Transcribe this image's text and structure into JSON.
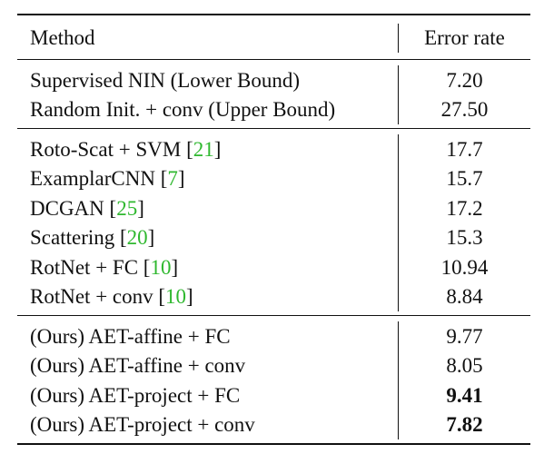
{
  "table": {
    "header": {
      "method": "Method",
      "error": "Error rate"
    },
    "groups": [
      [
        {
          "method": "Supervised NIN (Lower Bound)",
          "cite": "",
          "error": "7.20",
          "bold": false
        },
        {
          "method": "Random Init. + conv (Upper Bound)",
          "cite": "",
          "error": "27.50",
          "bold": false
        }
      ],
      [
        {
          "method": "Roto-Scat + SVM ",
          "cite": "21",
          "error": "17.7",
          "bold": false
        },
        {
          "method": "ExamplarCNN ",
          "cite": "7",
          "error": "15.7",
          "bold": false
        },
        {
          "method": "DCGAN ",
          "cite": "25",
          "error": "17.2",
          "bold": false
        },
        {
          "method": "Scattering ",
          "cite": "20",
          "error": "15.3",
          "bold": false
        },
        {
          "method": "RotNet + FC ",
          "cite": "10",
          "error": "10.94",
          "bold": false
        },
        {
          "method": "RotNet + conv ",
          "cite": "10",
          "error": "8.84",
          "bold": false
        }
      ],
      [
        {
          "method": "(Ours) AET-affine + FC",
          "cite": "",
          "error": "9.77",
          "bold": false
        },
        {
          "method": "(Ours) AET-affine + conv",
          "cite": "",
          "error": "8.05",
          "bold": false
        },
        {
          "method": "(Ours) AET-project + FC",
          "cite": "",
          "error": "9.41",
          "bold": true
        },
        {
          "method": "(Ours) AET-project + conv",
          "cite": "",
          "error": "7.82",
          "bold": true
        }
      ]
    ],
    "colors": {
      "citation": "#2fb82f",
      "text": "#111111"
    }
  }
}
